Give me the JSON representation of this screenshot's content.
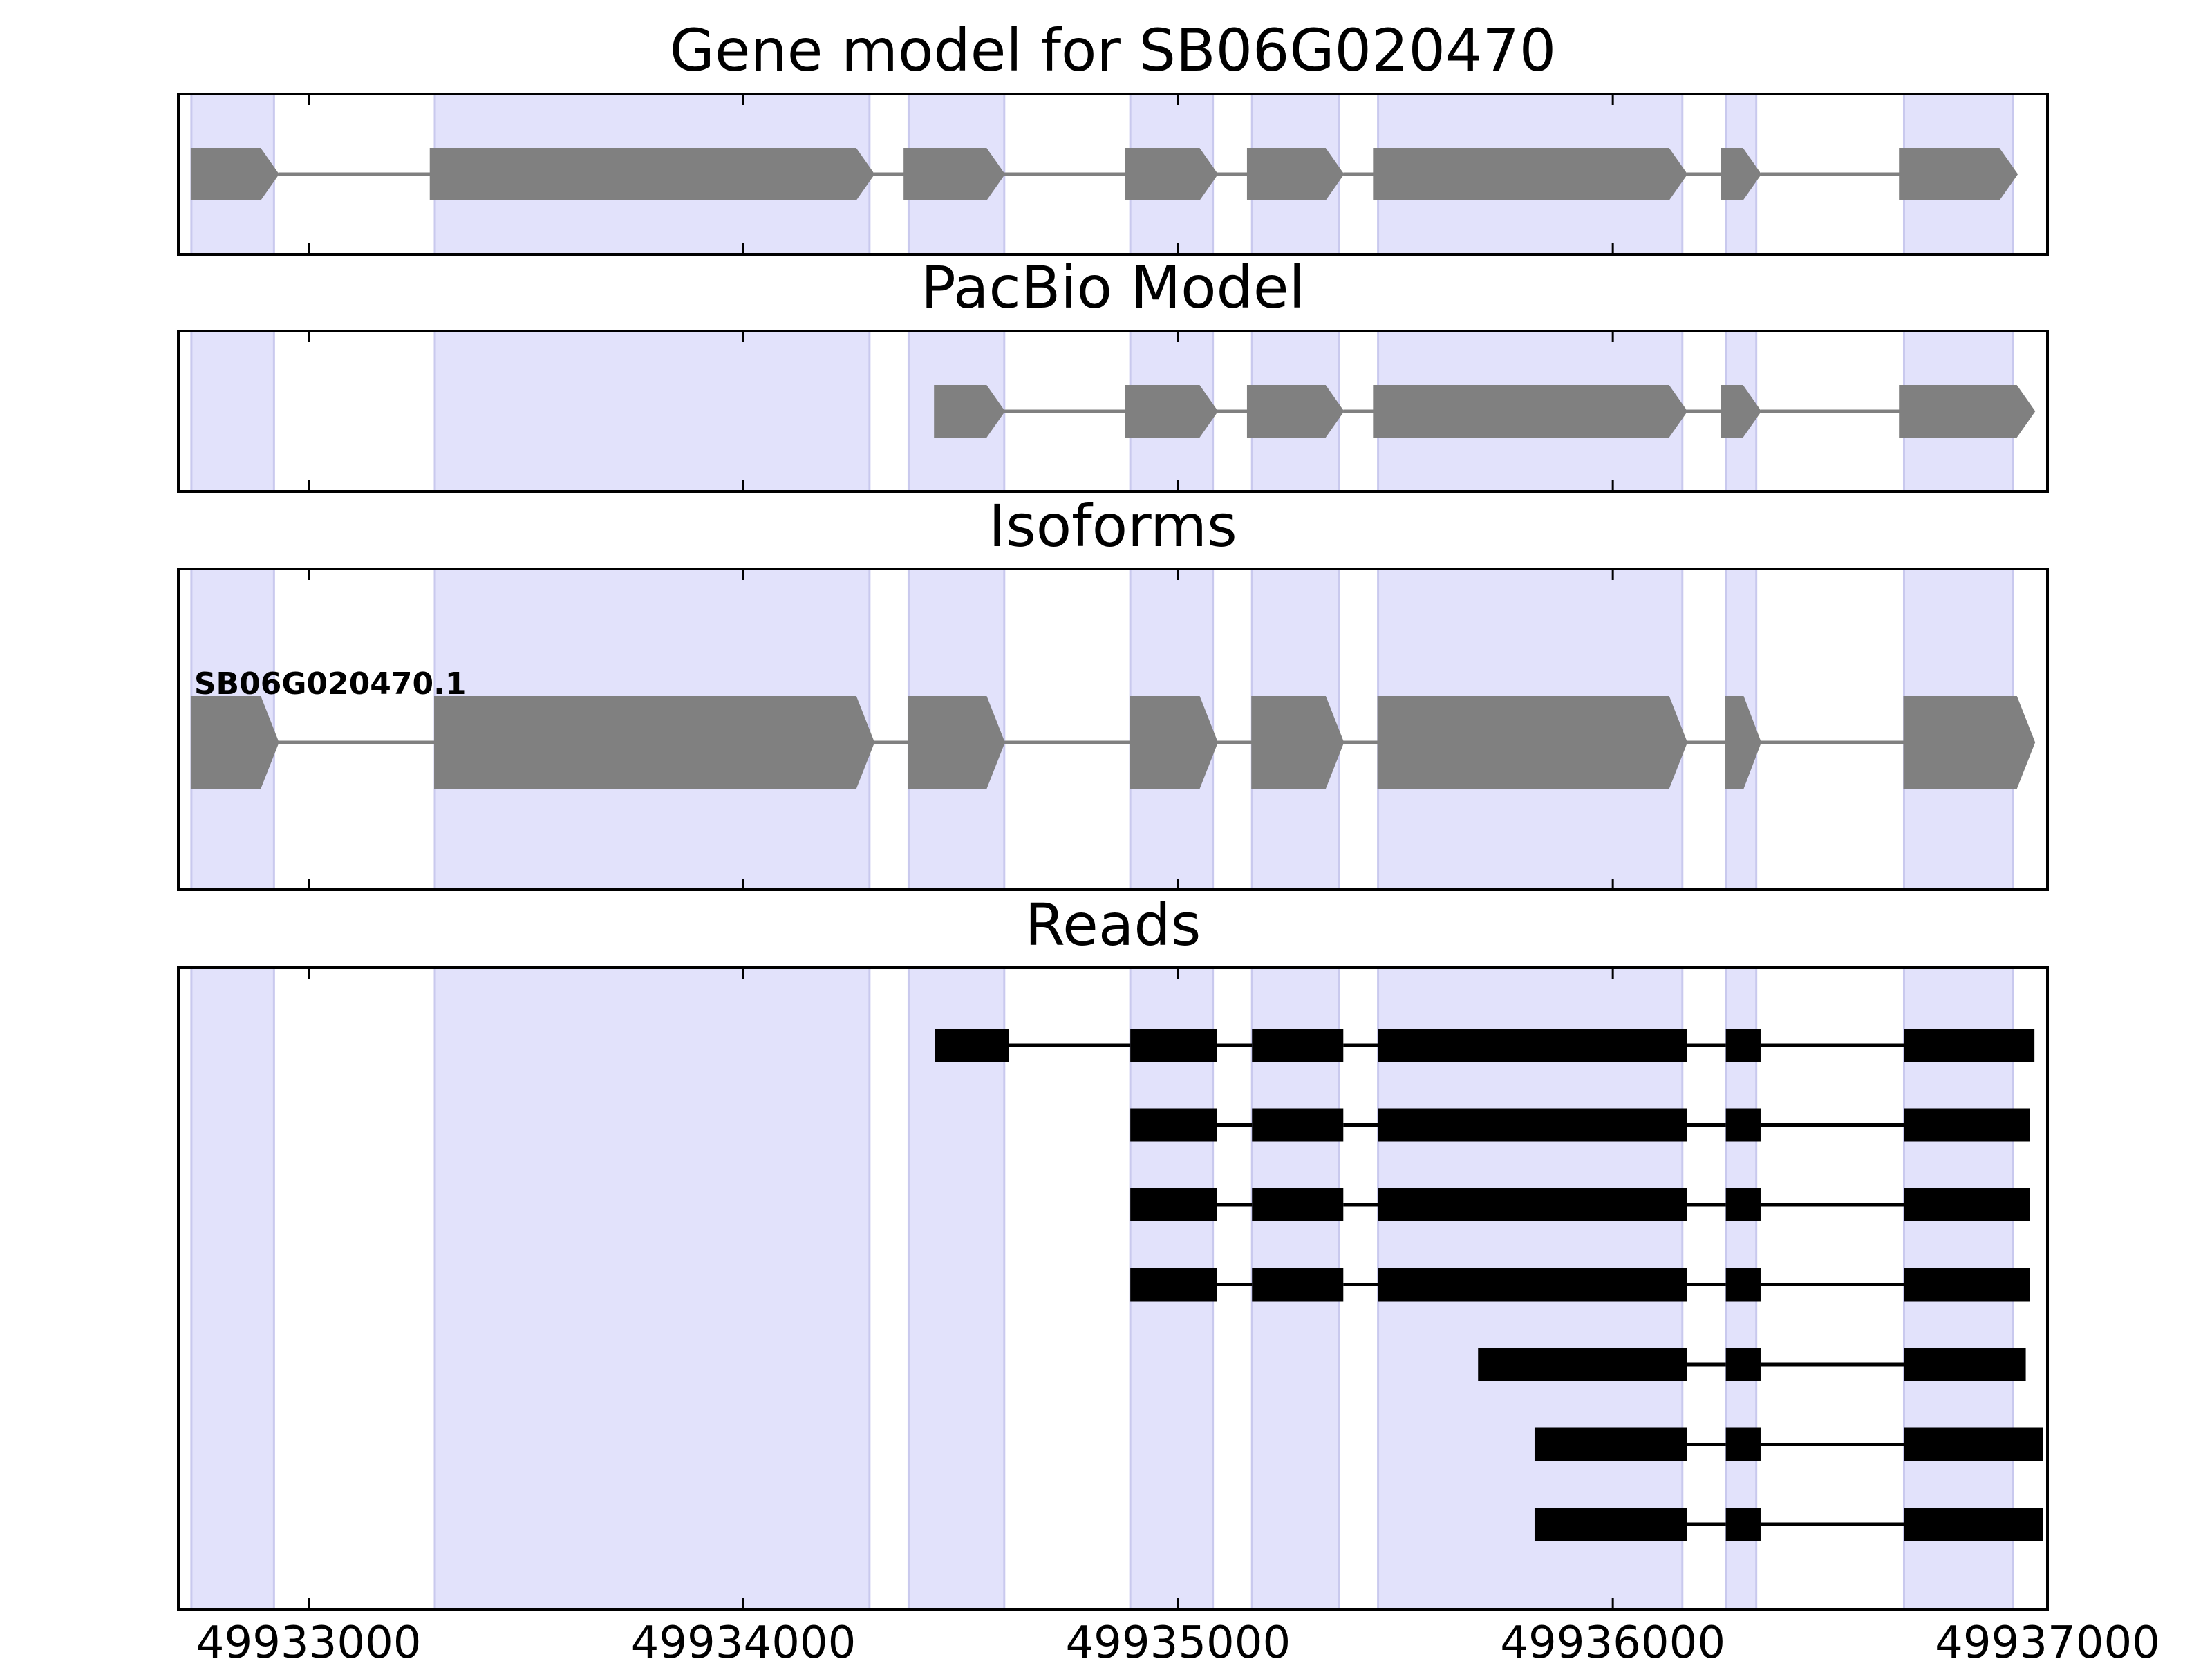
{
  "chart_data": [
    {
      "type": "gene-track",
      "title": "Gene model for SB06G020470",
      "xlim": [
        49932700,
        49937000
      ],
      "exon_shading": [
        [
          49932730,
          49932920
        ],
        [
          49933290,
          49934290
        ],
        [
          49934380,
          49934600
        ],
        [
          49934890,
          49935080
        ],
        [
          49935170,
          49935370
        ],
        [
          49935460,
          49936160
        ],
        [
          49936260,
          49936330
        ],
        [
          49936670,
          49936920
        ]
      ],
      "exons": [
        [
          49932730,
          49932930
        ],
        [
          49933280,
          49934300
        ],
        [
          49934370,
          49934600
        ],
        [
          49934880,
          49935090
        ],
        [
          49935160,
          49935380
        ],
        [
          49935450,
          49936170
        ],
        [
          49936250,
          49936340
        ],
        [
          49936660,
          49936930
        ]
      ],
      "strand": "+"
    },
    {
      "type": "gene-track",
      "title": "PacBio Model",
      "xlim": [
        49932700,
        49937000
      ],
      "exon_shading": [
        [
          49932730,
          49932920
        ],
        [
          49933290,
          49934290
        ],
        [
          49934380,
          49934600
        ],
        [
          49934890,
          49935080
        ],
        [
          49935170,
          49935370
        ],
        [
          49935460,
          49936160
        ],
        [
          49936260,
          49936330
        ],
        [
          49936670,
          49936920
        ]
      ],
      "exons": [
        [
          49934440,
          49934600
        ],
        [
          49934880,
          49935090
        ],
        [
          49935160,
          49935380
        ],
        [
          49935450,
          49936170
        ],
        [
          49936250,
          49936340
        ],
        [
          49936660,
          49936970
        ]
      ],
      "strand": "+"
    },
    {
      "type": "gene-track",
      "title": "Isoforms",
      "xlim": [
        49932700,
        49937000
      ],
      "exon_shading": [
        [
          49932730,
          49932920
        ],
        [
          49933290,
          49934290
        ],
        [
          49934380,
          49934600
        ],
        [
          49934890,
          49935080
        ],
        [
          49935170,
          49935370
        ],
        [
          49935460,
          49936160
        ],
        [
          49936260,
          49936330
        ],
        [
          49936670,
          49936920
        ]
      ],
      "isoforms": [
        {
          "name": "SB06G020470.1",
          "exons": [
            [
              49932730,
              49932930
            ],
            [
              49933290,
              49934300
            ],
            [
              49934380,
              49934600
            ],
            [
              49934890,
              49935090
            ],
            [
              49935170,
              49935380
            ],
            [
              49935460,
              49936170
            ],
            [
              49936260,
              49936340
            ],
            [
              49936670,
              49936970
            ]
          ]
        }
      ]
    },
    {
      "type": "read-track",
      "title": "Reads",
      "xlim": [
        49932700,
        49937000
      ],
      "xticks": [
        49933000,
        49934000,
        49935000,
        49936000,
        49937000
      ],
      "xtick_labels": [
        "49933000",
        "49934000",
        "49935000",
        "49936000",
        "49937000"
      ],
      "exon_shading": [
        [
          49932730,
          49932920
        ],
        [
          49933290,
          49934290
        ],
        [
          49934380,
          49934600
        ],
        [
          49934890,
          49935080
        ],
        [
          49935170,
          49935370
        ],
        [
          49935460,
          49936160
        ],
        [
          49936260,
          49936330
        ],
        [
          49936670,
          49936920
        ]
      ],
      "reads": [
        [
          [
            49934440,
            49934610
          ],
          [
            49934890,
            49935090
          ],
          [
            49935170,
            49935380
          ],
          [
            49935460,
            49936170
          ],
          [
            49936260,
            49936340
          ],
          [
            49936670,
            49936970
          ]
        ],
        [
          [
            49934890,
            49935090
          ],
          [
            49935170,
            49935380
          ],
          [
            49935460,
            49936170
          ],
          [
            49936260,
            49936340
          ],
          [
            49936670,
            49936960
          ]
        ],
        [
          [
            49934890,
            49935090
          ],
          [
            49935170,
            49935380
          ],
          [
            49935460,
            49936170
          ],
          [
            49936260,
            49936340
          ],
          [
            49936670,
            49936960
          ]
        ],
        [
          [
            49934890,
            49935090
          ],
          [
            49935170,
            49935380
          ],
          [
            49935460,
            49936170
          ],
          [
            49936260,
            49936340
          ],
          [
            49936670,
            49936960
          ]
        ],
        [
          [
            49935690,
            49936170
          ],
          [
            49936260,
            49936340
          ],
          [
            49936670,
            49936950
          ]
        ],
        [
          [
            49935820,
            49936170
          ],
          [
            49936260,
            49936340
          ],
          [
            49936670,
            49936990
          ]
        ],
        [
          [
            49935820,
            49936170
          ],
          [
            49936260,
            49936340
          ],
          [
            49936670,
            49936990
          ]
        ]
      ]
    }
  ],
  "colors": {
    "shade": "#e2e2fb",
    "shade_edge": "#c9c9ee",
    "exon": "#808080",
    "intron": "#808080",
    "read": "#000000",
    "frame": "#000000"
  }
}
